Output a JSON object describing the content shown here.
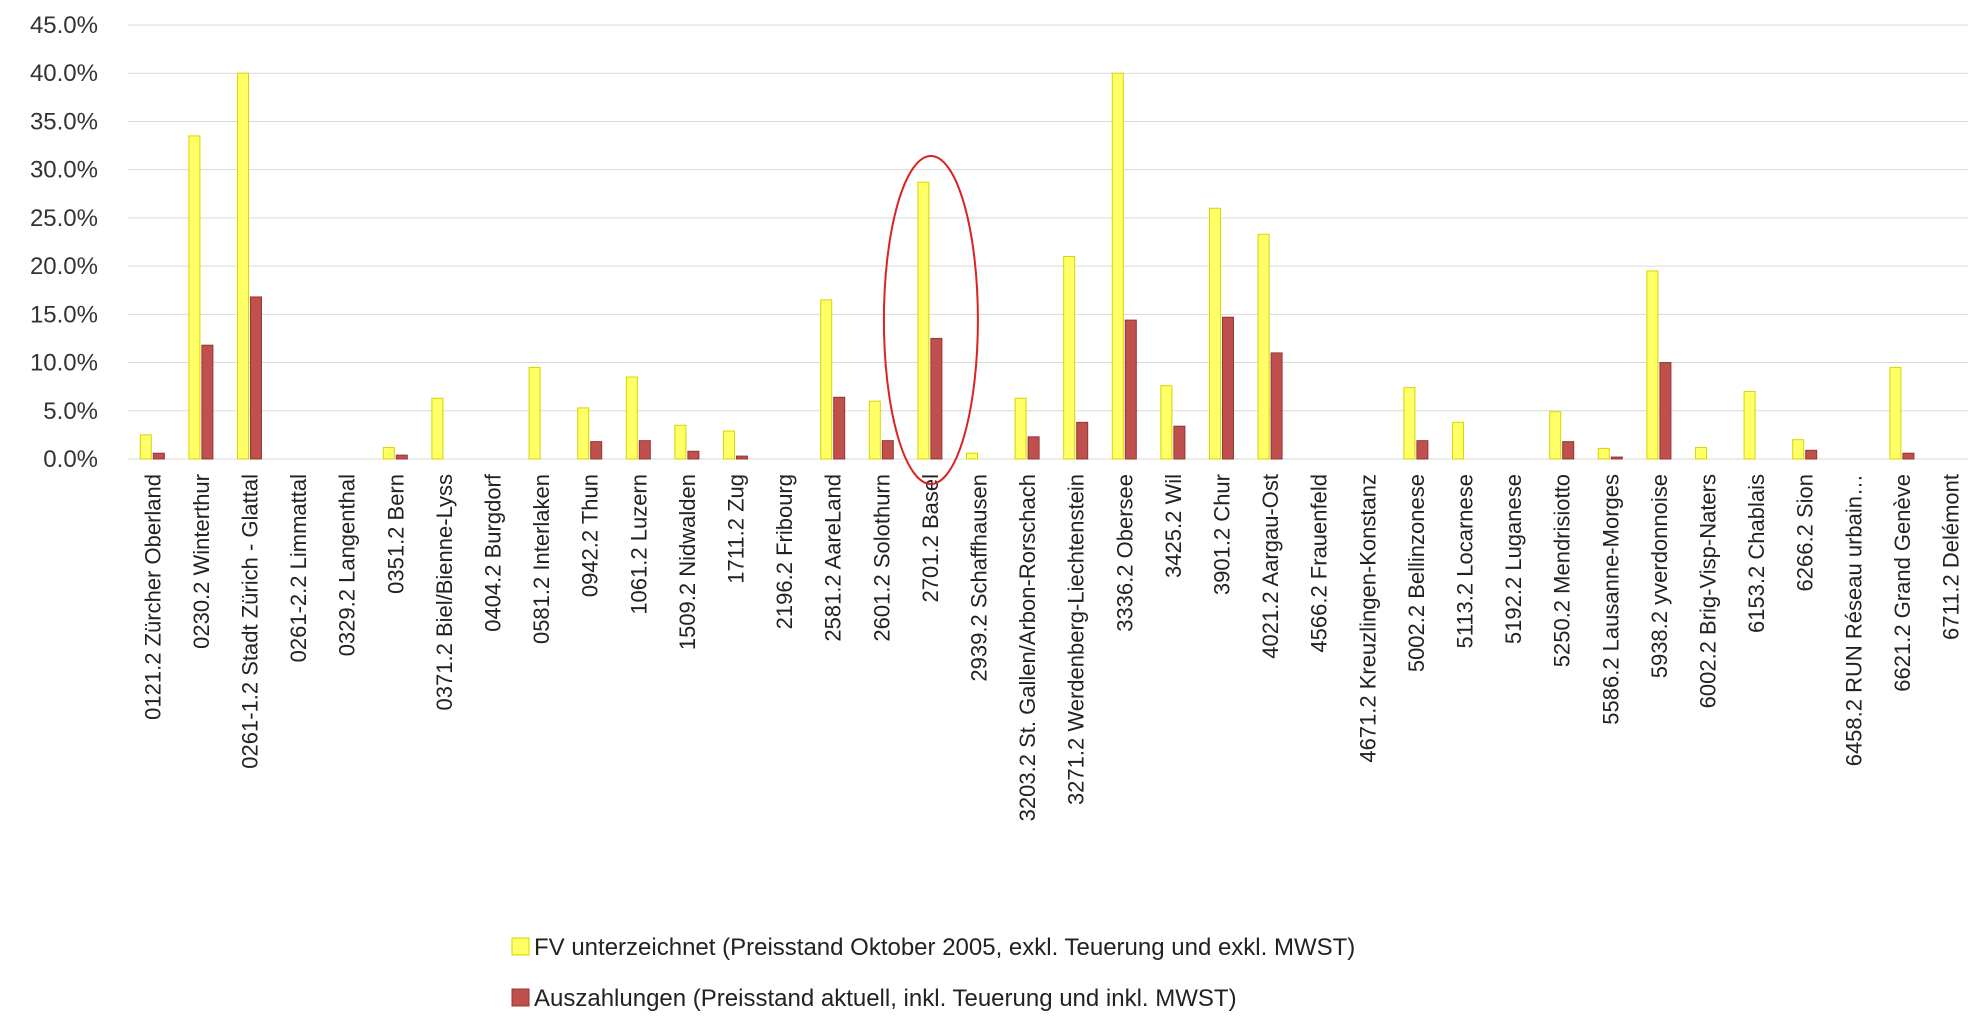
{
  "chart_data": {
    "type": "bar",
    "ylim": [
      0,
      45
    ],
    "yticks": [
      "0.0%",
      "5.0%",
      "10.0%",
      "15.0%",
      "20.0%",
      "25.0%",
      "30.0%",
      "35.0%",
      "40.0%",
      "45.0%"
    ],
    "grid": true,
    "legend_position": "bottom",
    "categories": [
      "0121.2 Zürcher Oberland",
      "0230.2 Winterthur",
      "0261-1.2 Stadt Zürich - Glattal",
      "0261-2.2 Limmattal",
      "0329.2 Langenthal",
      "0351.2 Bern",
      "0371.2 Biel/Bienne-Lyss",
      "0404.2 Burgdorf",
      "0581.2 Interlaken",
      "0942.2 Thun",
      "1061.2 Luzern",
      "1509.2 Nidwalden",
      "1711.2 Zug",
      "2196.2 Fribourg",
      "2581.2 AareLand",
      "2601.2 Solothurn",
      "2701.2 Basel",
      "2939.2 Schaffhausen",
      "3203.2 St. Gallen/Arbon-Rorschach",
      "3271.2 Werdenberg-Liechtenstein",
      "3336.2 Obersee",
      "3425.2 Wil",
      "3901.2 Chur",
      "4021.2 Aargau-Ost",
      "4566.2 Frauenfeld",
      "4671.2 Kreuzlingen-Konstanz",
      "5002.2 Bellinzonese",
      "5113.2 Locarnese",
      "5192.2 Luganese",
      "5250.2 Mendrisiotto",
      "5586.2 Lausanne-Morges",
      "5938.2 yverdonnoise",
      "6002.2 Brig-Visp-Naters",
      "6153.2 Chablais",
      "6266.2 Sion",
      "6458.2 RUN Réseau urbain…",
      "6621.2 Grand Genève",
      "6711.2 Delémont"
    ],
    "series": [
      {
        "name": "FV unterzeichnet (Preisstand Oktober 2005, exkl. Teuerung und exkl. MWST)",
        "color": "#ffff66",
        "stroke": "#d6d600",
        "values": [
          2.5,
          33.5,
          40.0,
          0,
          0,
          1.2,
          6.3,
          0,
          9.5,
          5.3,
          8.5,
          3.5,
          2.9,
          0,
          16.5,
          6.0,
          28.7,
          0.6,
          6.3,
          21.0,
          40.0,
          7.6,
          26.0,
          23.3,
          0,
          0,
          7.4,
          3.8,
          0,
          4.9,
          1.1,
          19.5,
          1.2,
          7.0,
          2.0,
          0,
          9.5,
          0
        ]
      },
      {
        "name": "Auszahlungen (Preisstand aktuell, inkl. Teuerung und inkl. MWST)",
        "color": "#c0504d",
        "stroke": "#943634",
        "values": [
          0.6,
          11.8,
          16.8,
          0,
          0,
          0.4,
          0,
          0,
          0,
          1.8,
          1.9,
          0.8,
          0.3,
          0,
          6.4,
          1.9,
          12.5,
          0,
          2.3,
          3.8,
          14.4,
          3.4,
          14.7,
          11.0,
          0,
          0,
          1.9,
          0,
          0,
          1.8,
          0.2,
          10.0,
          0,
          0,
          0.9,
          0,
          0.6,
          0
        ]
      }
    ],
    "annotation": {
      "type": "ellipse",
      "target": "2701.2 Basel",
      "color": "#dd2222"
    }
  }
}
